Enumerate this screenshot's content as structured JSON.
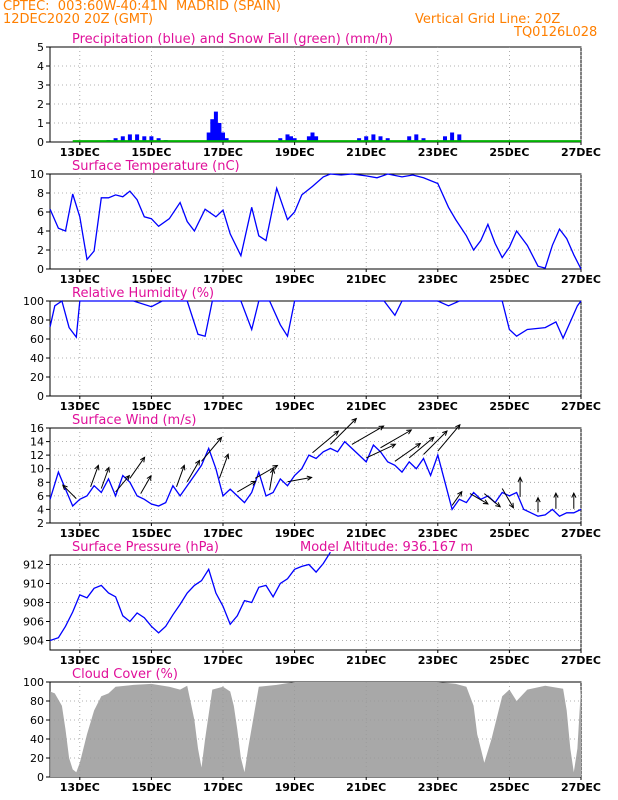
{
  "header": {
    "line1_left": "CPTEC:  003:60W-40:41N  MADRID (SPAIN)",
    "line2_left": "12DEC2020 20Z (GMT)",
    "line2_right": "Vertical Grid Line: 20Z",
    "line3_right": "TQ0126L028"
  },
  "colors": {
    "header": "#ff7f00",
    "title": "#e0109a",
    "precip": "#0000ff",
    "snow": "#00b000",
    "line": "#0000ff",
    "wind_arrow": "#000000",
    "cloud": "#a8a8a8"
  },
  "x_ticks": [
    "13DEC",
    "15DEC",
    "17DEC",
    "19DEC",
    "21DEC",
    "23DEC",
    "25DEC",
    "27DEC"
  ],
  "chart_data": [
    {
      "type": "bar",
      "title": "Precipitation (blue) and Snow Fall (green) (mm/h)",
      "ylim": [
        0,
        5
      ],
      "yticks": [
        "0",
        "1",
        "2",
        "3",
        "4",
        "5"
      ],
      "series": [
        {
          "name": "Precipitation",
          "x": [
            13.8,
            14.0,
            14.2,
            14.4,
            14.6,
            14.8,
            15.0,
            15.2,
            15.4,
            16.6,
            16.7,
            16.8,
            16.9,
            17.0,
            17.1,
            18.6,
            18.8,
            18.9,
            19.0,
            19.4,
            19.5,
            19.6,
            20.8,
            21.0,
            21.2,
            21.4,
            21.6,
            22.2,
            22.4,
            22.6,
            23.2,
            23.4,
            23.6
          ],
          "values": [
            0.1,
            0.2,
            0.3,
            0.4,
            0.4,
            0.3,
            0.3,
            0.2,
            0.1,
            0.5,
            1.2,
            1.6,
            1.0,
            0.5,
            0.2,
            0.2,
            0.4,
            0.3,
            0.2,
            0.3,
            0.5,
            0.3,
            0.2,
            0.3,
            0.4,
            0.3,
            0.2,
            0.3,
            0.4,
            0.2,
            0.3,
            0.5,
            0.4
          ]
        },
        {
          "name": "Snow Fall",
          "x": [
            12.8,
            27.0
          ],
          "values": [
            0.05,
            0.05
          ]
        }
      ]
    },
    {
      "type": "line",
      "title": "Surface Temperature (nC)",
      "ylim": [
        0,
        10
      ],
      "yticks": [
        "0",
        "2",
        "4",
        "6",
        "8",
        "10"
      ],
      "x": [
        12.17,
        12.4,
        12.6,
        12.8,
        13.0,
        13.2,
        13.4,
        13.6,
        13.8,
        14.0,
        14.2,
        14.4,
        14.6,
        14.8,
        15.0,
        15.2,
        15.5,
        15.8,
        16.0,
        16.2,
        16.5,
        16.8,
        17.0,
        17.2,
        17.5,
        17.8,
        18.0,
        18.2,
        18.5,
        18.8,
        19.0,
        19.2,
        19.5,
        19.8,
        20.0,
        20.3,
        20.6,
        21.0,
        21.3,
        21.6,
        22.0,
        22.3,
        22.6,
        23.0,
        23.3,
        23.5,
        23.8,
        24.0,
        24.2,
        24.4,
        24.6,
        24.8,
        25.0,
        25.2,
        25.5,
        25.8,
        26.0,
        26.2,
        26.4,
        26.6,
        26.8,
        27.0
      ],
      "values": [
        6.3,
        4.3,
        4.0,
        7.9,
        5.5,
        1.0,
        1.9,
        7.5,
        7.5,
        7.8,
        7.6,
        8.2,
        7.3,
        5.5,
        5.3,
        4.5,
        5.3,
        7.0,
        5.0,
        4.0,
        6.3,
        5.5,
        6.2,
        3.7,
        1.4,
        6.5,
        3.5,
        3.0,
        8.5,
        5.2,
        6.0,
        7.8,
        8.7,
        9.7,
        10.0,
        9.9,
        10.0,
        9.8,
        9.6,
        10.0,
        9.7,
        9.9,
        9.6,
        9.0,
        6.5,
        5.2,
        3.5,
        2.0,
        3.0,
        4.7,
        2.7,
        1.2,
        2.3,
        4.0,
        2.5,
        0.3,
        0.1,
        2.5,
        4.2,
        3.2,
        1.5,
        0.0
      ]
    },
    {
      "type": "line",
      "title": "Relative Humidity (%)",
      "ylim": [
        0,
        100
      ],
      "yticks": [
        "0",
        "20",
        "40",
        "60",
        "80",
        "100"
      ],
      "x": [
        12.17,
        12.3,
        12.5,
        12.7,
        12.9,
        13.0,
        13.5,
        14.0,
        14.5,
        15.0,
        15.3,
        15.6,
        16.0,
        16.3,
        16.5,
        16.7,
        17.0,
        17.5,
        17.8,
        18.0,
        18.3,
        18.6,
        18.8,
        19.0,
        19.3,
        20.0,
        21.0,
        21.5,
        21.8,
        22.0,
        22.5,
        22.8,
        23.0,
        23.3,
        23.6,
        24.0,
        24.5,
        24.8,
        25.0,
        25.2,
        25.5,
        26.0,
        26.3,
        26.5,
        26.7,
        26.9,
        27.0
      ],
      "values": [
        73,
        95,
        100,
        72,
        62,
        100,
        100,
        100,
        100,
        94,
        100,
        100,
        100,
        65,
        63,
        100,
        100,
        100,
        70,
        100,
        100,
        75,
        63,
        100,
        100,
        100,
        100,
        100,
        85,
        100,
        100,
        100,
        100,
        95,
        100,
        100,
        100,
        100,
        70,
        63,
        70,
        72,
        78,
        61,
        78,
        95,
        100
      ]
    },
    {
      "type": "line",
      "title": "Surface Wind (m/s)",
      "ylim": [
        2,
        16
      ],
      "yticks": [
        "2",
        "4",
        "6",
        "8",
        "10",
        "12",
        "14",
        "16"
      ],
      "x": [
        12.17,
        12.4,
        12.6,
        12.8,
        13.0,
        13.2,
        13.4,
        13.6,
        13.8,
        14.0,
        14.2,
        14.4,
        14.6,
        14.8,
        15.0,
        15.2,
        15.4,
        15.6,
        15.8,
        16.0,
        16.2,
        16.4,
        16.6,
        16.8,
        17.0,
        17.2,
        17.4,
        17.6,
        17.8,
        18.0,
        18.2,
        18.4,
        18.6,
        18.8,
        19.0,
        19.2,
        19.4,
        19.6,
        19.8,
        20.0,
        20.2,
        20.4,
        20.6,
        20.8,
        21.0,
        21.2,
        21.4,
        21.6,
        21.8,
        22.0,
        22.2,
        22.4,
        22.6,
        22.8,
        23.0,
        23.2,
        23.4,
        23.6,
        23.8,
        24.0,
        24.2,
        24.4,
        24.6,
        24.8,
        25.0,
        25.2,
        25.4,
        25.6,
        25.8,
        26.0,
        26.2,
        26.4,
        26.6,
        26.8,
        27.0
      ],
      "values": [
        5.5,
        9.5,
        7.0,
        4.5,
        5.5,
        6.0,
        7.5,
        6.5,
        8.5,
        6.0,
        9.0,
        8.0,
        6.0,
        5.5,
        4.8,
        4.5,
        5.0,
        7.5,
        6.0,
        7.5,
        9.0,
        10.5,
        13.0,
        10.0,
        6.0,
        7.0,
        6.0,
        5.0,
        6.5,
        9.5,
        6.0,
        6.5,
        8.5,
        7.5,
        9.0,
        10.0,
        12.0,
        11.5,
        12.5,
        13.0,
        12.5,
        14.0,
        13.0,
        12.0,
        11.0,
        13.5,
        12.5,
        11.0,
        10.5,
        9.5,
        11.0,
        10.0,
        11.5,
        9.0,
        12.0,
        8.0,
        4.0,
        5.5,
        5.0,
        6.5,
        5.5,
        6.0,
        5.0,
        6.5,
        6.0,
        6.5,
        4.0,
        3.5,
        3.0,
        3.2,
        4.0,
        3.0,
        3.5,
        3.5,
        4.0
      ],
      "arrows": [
        {
          "x": 12.9,
          "dir": 135
        },
        {
          "x": 13.3,
          "dir": 200
        },
        {
          "x": 13.6,
          "dir": 200
        },
        {
          "x": 14.0,
          "dir": 220
        },
        {
          "x": 14.4,
          "dir": 215
        },
        {
          "x": 14.7,
          "dir": 210
        },
        {
          "x": 15.7,
          "dir": 200
        },
        {
          "x": 16.0,
          "dir": 210
        },
        {
          "x": 16.4,
          "dir": 220
        },
        {
          "x": 16.9,
          "dir": 200
        },
        {
          "x": 17.4,
          "dir": 240
        },
        {
          "x": 17.9,
          "dir": 240
        },
        {
          "x": 18.3,
          "dir": 190
        },
        {
          "x": 18.8,
          "dir": 260
        },
        {
          "x": 19.5,
          "dir": 230
        },
        {
          "x": 20.0,
          "dir": 225
        },
        {
          "x": 20.6,
          "dir": 240
        },
        {
          "x": 21.0,
          "dir": 245
        },
        {
          "x": 21.4,
          "dir": 240
        },
        {
          "x": 21.8,
          "dir": 235
        },
        {
          "x": 22.2,
          "dir": 230
        },
        {
          "x": 22.6,
          "dir": 225
        },
        {
          "x": 23.0,
          "dir": 220
        },
        {
          "x": 23.4,
          "dir": 215
        },
        {
          "x": 23.9,
          "dir": 300
        },
        {
          "x": 24.3,
          "dir": 310
        },
        {
          "x": 24.8,
          "dir": 330
        },
        {
          "x": 25.3,
          "dir": 180
        },
        {
          "x": 25.8,
          "dir": 180
        },
        {
          "x": 26.3,
          "dir": 180
        },
        {
          "x": 26.8,
          "dir": 180
        }
      ]
    },
    {
      "type": "line",
      "title": "Surface Pressure (hPa)",
      "annotation": "Model Altitude: 936.167 m",
      "ylim": [
        903,
        913
      ],
      "yticks": [
        "904",
        "906",
        "908",
        "910",
        "912"
      ],
      "x": [
        12.17,
        12.4,
        12.6,
        12.8,
        13.0,
        13.2,
        13.4,
        13.6,
        13.8,
        14.0,
        14.2,
        14.4,
        14.6,
        14.8,
        15.0,
        15.2,
        15.4,
        15.6,
        15.8,
        16.0,
        16.2,
        16.4,
        16.6,
        16.8,
        17.0,
        17.2,
        17.4,
        17.6,
        17.8,
        18.0,
        18.2,
        18.4,
        18.6,
        18.8,
        19.0,
        19.2,
        19.4,
        19.6,
        19.8,
        20.0
      ],
      "values": [
        904.0,
        904.3,
        905.5,
        907.0,
        908.8,
        908.5,
        909.5,
        909.8,
        909.0,
        908.6,
        906.6,
        906.0,
        906.9,
        906.4,
        905.5,
        904.8,
        905.5,
        906.7,
        907.8,
        909.0,
        909.8,
        910.3,
        911.5,
        909.0,
        907.6,
        905.7,
        906.6,
        908.2,
        908.0,
        909.6,
        909.8,
        908.6,
        910.0,
        910.5,
        911.5,
        911.8,
        912.0,
        911.2,
        912.1,
        913.3
      ]
    },
    {
      "type": "area",
      "title": "Cloud Cover (%)",
      "ylim": [
        0,
        100
      ],
      "yticks": [
        "0",
        "20",
        "40",
        "60",
        "80",
        "100"
      ],
      "x": [
        12.17,
        12.3,
        12.5,
        12.6,
        12.7,
        12.8,
        12.9,
        13.0,
        13.2,
        13.4,
        13.6,
        13.8,
        14.0,
        14.5,
        15.0,
        15.5,
        15.8,
        16.0,
        16.2,
        16.3,
        16.4,
        16.5,
        16.7,
        17.0,
        17.2,
        17.3,
        17.4,
        17.5,
        17.6,
        17.7,
        18.0,
        18.5,
        19.0,
        20.0,
        21.0,
        22.0,
        23.0,
        23.5,
        23.8,
        24.0,
        24.1,
        24.2,
        24.3,
        24.5,
        24.8,
        25.0,
        25.2,
        25.5,
        26.0,
        26.5,
        26.6,
        26.7,
        26.8,
        26.9,
        27.0
      ],
      "values": [
        90,
        88,
        75,
        50,
        20,
        8,
        5,
        15,
        45,
        70,
        85,
        88,
        95,
        97,
        98,
        95,
        92,
        96,
        60,
        30,
        10,
        40,
        92,
        95,
        90,
        75,
        50,
        20,
        5,
        30,
        95,
        97,
        100,
        100,
        100,
        100,
        100,
        98,
        95,
        75,
        45,
        30,
        15,
        40,
        85,
        92,
        80,
        92,
        96,
        93,
        70,
        30,
        5,
        30,
        95
      ]
    }
  ]
}
